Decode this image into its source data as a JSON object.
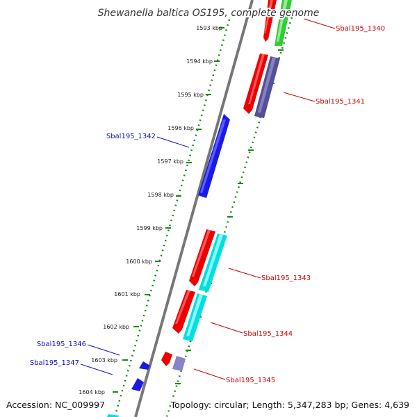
{
  "title": "Shewanella baltica OS195, complete genome",
  "footer": {
    "accession": "Accession: NC_009997",
    "summary": "Topology: circular; Length: 5,347,283 bp; Genes: 4,639"
  },
  "ticks": [
    "1593 kbp",
    "1594 kbp",
    "1595 kbp",
    "1596 kbp",
    "1597 kbp",
    "1598 kbp",
    "1599 kbp",
    "1600 kbp",
    "1601 kbp",
    "1602 kbp",
    "1603 kbp",
    "1604 kbp"
  ],
  "genes": [
    {
      "id": "Sbal195_1340",
      "strand": "forward"
    },
    {
      "id": "Sbal195_1341",
      "strand": "forward"
    },
    {
      "id": "Sbal195_1342",
      "strand": "reverse"
    },
    {
      "id": "Sbal195_1343",
      "strand": "forward"
    },
    {
      "id": "Sbal195_1344",
      "strand": "forward"
    },
    {
      "id": "Sbal195_1345",
      "strand": "forward"
    },
    {
      "id": "Sbal195_1346",
      "strand": "reverse"
    },
    {
      "id": "Sbal195_1347",
      "strand": "reverse"
    }
  ],
  "colors": {
    "forward_cds": "#ee0000",
    "reverse_cds": "#1a1ae6",
    "green_feature": "#33cc33",
    "cyan_feature": "#00e0e0",
    "purple_feature": "#55509a",
    "backbone": "#777777",
    "tick_track": "#1a8a1a",
    "forward_label": "#cc0000",
    "reverse_label": "#1010c8"
  }
}
